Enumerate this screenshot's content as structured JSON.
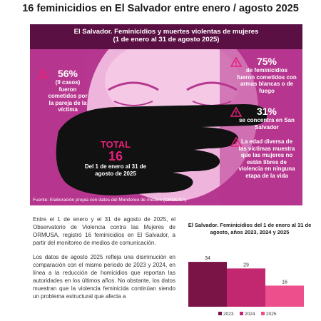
{
  "headline": "16 feminicidios en El Salvador entre enero / agosto 2025",
  "infographic": {
    "title_line1": "El Salvador. Feminicidios y muertes violentas de mujeres",
    "title_line2": "(1 de enero al 31 de agosto 2025)",
    "stat_left": {
      "percent": "56%",
      "detail": "(9 casos)",
      "text": "fueron cometidos por la pareja de la víctima"
    },
    "stat_right_1": {
      "percent": "75%",
      "text": "de feminicidios fueron cometidos con armas blancas o de fuego"
    },
    "stat_right_2": {
      "percent": "31%",
      "text": "se concentra en San Salvador"
    },
    "stat_right_3": {
      "text": "La edad diversa de las víctimas muestra que las mujeres no están libres de violencia en ninguna etapa de la vida"
    },
    "total": {
      "label": "TOTAL",
      "value": "16",
      "text": "Del 1 de enero al 31 de agosto de 2025"
    },
    "source": "Fuente: Elaboración propia con datos del Monitoreo de medios (ORMUSA)",
    "colors": {
      "background": "#b6378f",
      "banner": "#5b1043",
      "accent": "#e8207a"
    }
  },
  "body": {
    "paragraph1": "Entre el 1 de enero y el 31 de agosto de 2025, el Observatorio de Violencia contra las Mujeres de ORMUSA, registró 16 feminicidios en El Salvador, a partir del monitoreo de medios de comunicación.",
    "paragraph2": "Los datos de agosto 2025 refleja una disminución en comparación con el mismo periodo de 2023 y 2024, en línea a la reducción de homicidios que reportan las autoridades en los últimos años. No obstante, los datos muestran que la violencia feminicida continúan siendo un problema estructural que afecta a"
  },
  "chart_data": {
    "type": "bar",
    "title": "El Salvador. Feminicidios del 1 de enero al 31 de agosto, años 2023, 2024 y 2025",
    "categories": [
      "2023",
      "2024",
      "2025"
    ],
    "values": [
      34,
      29,
      16
    ],
    "colors": [
      "#7a1446",
      "#c2286f",
      "#ec4f8c"
    ],
    "legend_position": "bottom",
    "ylim": [
      0,
      40
    ]
  }
}
